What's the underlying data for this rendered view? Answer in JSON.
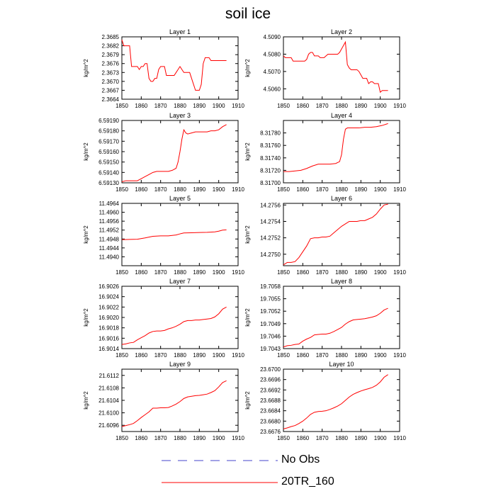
{
  "title": "soil ice",
  "colors": {
    "model_line": "#ff0000",
    "obs_line": "#4444cc",
    "axis": "#000000"
  },
  "legend": {
    "entries": [
      {
        "label": "No Obs",
        "style": "dashed",
        "color": "#4444cc"
      },
      {
        "label": "20TR_160",
        "style": "solid",
        "color": "#ff0000"
      }
    ]
  },
  "chart_data": [
    {
      "type": "line",
      "title": "Layer 1",
      "ylabel": "kg/m^2",
      "xlim": [
        1850,
        1910
      ],
      "x_ticks": [
        "1850",
        "1860",
        "1870",
        "1880",
        "1890",
        "1900",
        "1910"
      ],
      "ylim": [
        2.3664,
        2.3685
      ],
      "y_ticks": [
        "2.3664",
        "2.3667",
        "2.3670",
        "2.3673",
        "2.3676",
        "2.3679",
        "2.3682",
        "2.3685"
      ],
      "series": [
        {
          "name": "20TR_160",
          "x": [
            1850,
            1851,
            1852,
            1853,
            1854,
            1855,
            1856,
            1857,
            1858,
            1859,
            1860,
            1861,
            1862,
            1863,
            1864,
            1865,
            1866,
            1867,
            1868,
            1869,
            1870,
            1871,
            1872,
            1873,
            1874,
            1875,
            1876,
            1877,
            1878,
            1879,
            1880,
            1881,
            1882,
            1883,
            1884,
            1885,
            1886,
            1887,
            1888,
            1889,
            1890,
            1891,
            1892,
            1893,
            1894,
            1895,
            1896,
            1897,
            1898,
            1899,
            1900,
            1901,
            1902,
            1903,
            1904
          ],
          "y": [
            2.3684,
            2.3682,
            2.3682,
            2.3682,
            2.3682,
            2.3675,
            2.3675,
            2.3675,
            2.3675,
            2.3674,
            2.3675,
            2.3675,
            2.3676,
            2.3676,
            2.3671,
            2.367,
            2.367,
            2.3671,
            2.3671,
            2.3674,
            2.3675,
            2.3675,
            2.3675,
            2.3672,
            2.3672,
            2.3672,
            2.3672,
            2.3672,
            2.3673,
            2.3674,
            2.3675,
            2.3674,
            2.3673,
            2.3673,
            2.3673,
            2.3673,
            2.3671,
            2.3669,
            2.3667,
            2.3667,
            2.3667,
            2.3669,
            2.3676,
            2.3678,
            2.3678,
            2.3678,
            2.3677,
            2.3677,
            2.3677,
            2.3677,
            2.3677,
            2.3677,
            2.3677,
            2.3677,
            2.3677
          ]
        }
      ]
    },
    {
      "type": "line",
      "title": "Layer 2",
      "ylabel": "kg/m^2",
      "xlim": [
        1850,
        1910
      ],
      "x_ticks": [
        "1850",
        "1860",
        "1870",
        "1880",
        "1890",
        "1900",
        "1910"
      ],
      "ylim": [
        4.5054,
        4.509
      ],
      "y_ticks": [
        "4.5060",
        "4.5070",
        "4.5080",
        "4.5090"
      ],
      "series": [
        {
          "name": "20TR_160",
          "x": [
            1850,
            1851,
            1852,
            1853,
            1854,
            1855,
            1856,
            1857,
            1858,
            1859,
            1860,
            1861,
            1862,
            1863,
            1864,
            1865,
            1866,
            1867,
            1868,
            1869,
            1870,
            1871,
            1872,
            1873,
            1874,
            1875,
            1876,
            1877,
            1878,
            1879,
            1880,
            1881,
            1882,
            1883,
            1884,
            1885,
            1886,
            1887,
            1888,
            1889,
            1890,
            1891,
            1892,
            1893,
            1894,
            1895,
            1896,
            1897,
            1898,
            1899,
            1900,
            1901,
            1902,
            1903,
            1904
          ],
          "y": [
            4.5079,
            4.5078,
            4.5078,
            4.5078,
            4.5078,
            4.5076,
            4.5076,
            4.5076,
            4.5076,
            4.5076,
            4.5076,
            4.5076,
            4.5077,
            4.508,
            4.5081,
            4.5081,
            4.5079,
            4.5079,
            4.5079,
            4.5078,
            4.5078,
            4.5078,
            4.5079,
            4.508,
            4.508,
            4.508,
            4.508,
            4.508,
            4.508,
            4.5081,
            4.5083,
            4.5085,
            4.5087,
            4.5074,
            4.5072,
            4.5071,
            4.5071,
            4.5071,
            4.5071,
            4.507,
            4.5068,
            4.5066,
            4.5066,
            4.5066,
            4.5063,
            4.5064,
            4.5064,
            4.5063,
            4.5063,
            4.5063,
            4.5058,
            4.5059,
            4.5059,
            4.5059,
            4.5059
          ]
        }
      ]
    },
    {
      "type": "line",
      "title": "Layer 3",
      "ylabel": "kg/m^2",
      "xlim": [
        1850,
        1910
      ],
      "x_ticks": [
        "1850",
        "1860",
        "1870",
        "1880",
        "1890",
        "1900",
        "1910"
      ],
      "ylim": [
        6.5913,
        6.5919
      ],
      "y_ticks": [
        "6.59130",
        "6.59140",
        "6.59150",
        "6.59160",
        "6.59170",
        "6.59180",
        "6.59190"
      ],
      "series": [
        {
          "name": "20TR_160",
          "x": [
            1850,
            1852,
            1854,
            1856,
            1858,
            1860,
            1862,
            1864,
            1866,
            1868,
            1870,
            1872,
            1874,
            1876,
            1878,
            1879,
            1880,
            1881,
            1882,
            1883,
            1884,
            1886,
            1888,
            1890,
            1892,
            1894,
            1896,
            1898,
            1900,
            1902,
            1904
          ],
          "y": [
            6.59131,
            6.59132,
            6.59132,
            6.59132,
            6.59132,
            6.59134,
            6.59136,
            6.59138,
            6.5914,
            6.59141,
            6.59141,
            6.59141,
            6.59141,
            6.59142,
            6.59144,
            6.5915,
            6.5916,
            6.59172,
            6.59181,
            6.59178,
            6.59177,
            6.59178,
            6.59179,
            6.59179,
            6.59179,
            6.59179,
            6.5918,
            6.5918,
            6.59181,
            6.59184,
            6.59186
          ]
        }
      ]
    },
    {
      "type": "line",
      "title": "Layer 4",
      "ylabel": "kg/m^2",
      "xlim": [
        1850,
        1910
      ],
      "x_ticks": [
        "1850",
        "1860",
        "1870",
        "1880",
        "1890",
        "1900",
        "1910"
      ],
      "ylim": [
        8.317,
        8.318
      ],
      "y_ticks": [
        "8.31700",
        "8.31720",
        "8.31740",
        "8.31760",
        "8.31780"
      ],
      "series": [
        {
          "name": "20TR_160",
          "x": [
            1850,
            1853,
            1856,
            1859,
            1862,
            1865,
            1868,
            1871,
            1874,
            1877,
            1879,
            1880,
            1881,
            1882,
            1883,
            1886,
            1889,
            1892,
            1895,
            1898,
            1901,
            1904
          ],
          "y": [
            8.31718,
            8.31718,
            8.31719,
            8.3172,
            8.31723,
            8.31727,
            8.3173,
            8.3173,
            8.3173,
            8.31731,
            8.31734,
            8.31745,
            8.3177,
            8.31786,
            8.31788,
            8.31788,
            8.31788,
            8.31789,
            8.31789,
            8.3179,
            8.31792,
            8.31795
          ]
        }
      ]
    },
    {
      "type": "line",
      "title": "Layer 5",
      "ylabel": "kg/m^2",
      "xlim": [
        1850,
        1910
      ],
      "x_ticks": [
        "1850",
        "1860",
        "1870",
        "1880",
        "1890",
        "1900",
        "1910"
      ],
      "ylim": [
        11.4936,
        11.4964
      ],
      "y_ticks": [
        "11.4940",
        "11.4944",
        "11.4948",
        "11.4952",
        "11.4956",
        "11.4960",
        "11.4964"
      ],
      "series": [
        {
          "name": "20TR_160",
          "x": [
            1850,
            1854,
            1858,
            1862,
            1866,
            1870,
            1874,
            1878,
            1880,
            1882,
            1886,
            1890,
            1894,
            1898,
            1900,
            1902,
            1904
          ],
          "y": [
            11.49477,
            11.49478,
            11.49479,
            11.49485,
            11.49492,
            11.49494,
            11.49494,
            11.49498,
            11.49503,
            11.49507,
            11.49508,
            11.49509,
            11.4951,
            11.49512,
            11.49515,
            11.4952,
            11.49521
          ]
        }
      ]
    },
    {
      "type": "line",
      "title": "Layer 6",
      "ylabel": "kg/m^2",
      "xlim": [
        1850,
        1910
      ],
      "x_ticks": [
        "1850",
        "1860",
        "1870",
        "1880",
        "1890",
        "1900",
        "1910"
      ],
      "ylim": [
        14.27486,
        14.27562
      ],
      "y_ticks": [
        "14.2750",
        "14.2752",
        "14.2754",
        "14.2756"
      ],
      "series": [
        {
          "name": "20TR_160",
          "x": [
            1850,
            1852,
            1854,
            1856,
            1858,
            1860,
            1862,
            1864,
            1866,
            1868,
            1870,
            1872,
            1874,
            1876,
            1878,
            1880,
            1882,
            1884,
            1886,
            1888,
            1890,
            1892,
            1894,
            1896,
            1898,
            1900,
            1902,
            1904
          ],
          "y": [
            14.27487,
            14.2749,
            14.2749,
            14.27491,
            14.27496,
            14.27503,
            14.2751,
            14.27519,
            14.2752,
            14.2752,
            14.27521,
            14.27521,
            14.27522,
            14.27526,
            14.2753,
            14.27534,
            14.27537,
            14.2754,
            14.2754,
            14.2754,
            14.27541,
            14.27541,
            14.27543,
            14.27545,
            14.27549,
            14.27555,
            14.2756,
            14.27561
          ]
        }
      ]
    },
    {
      "type": "line",
      "title": "Layer 7",
      "ylabel": "kg/m^2",
      "xlim": [
        1850,
        1910
      ],
      "x_ticks": [
        "1850",
        "1860",
        "1870",
        "1880",
        "1890",
        "1900",
        "1910"
      ],
      "ylim": [
        16.9014,
        16.9026
      ],
      "y_ticks": [
        "16.9014",
        "16.9016",
        "16.9018",
        "16.9020",
        "16.9022",
        "16.9024",
        "16.9026"
      ],
      "series": [
        {
          "name": "20TR_160",
          "x": [
            1850,
            1852,
            1854,
            1856,
            1858,
            1860,
            1862,
            1864,
            1866,
            1868,
            1870,
            1872,
            1874,
            1876,
            1878,
            1880,
            1882,
            1884,
            1886,
            1888,
            1890,
            1892,
            1894,
            1896,
            1898,
            1900,
            1902,
            1904
          ],
          "y": [
            16.90148,
            16.90149,
            16.90151,
            16.90152,
            16.90157,
            16.90161,
            16.90165,
            16.9017,
            16.90173,
            16.90174,
            16.90174,
            16.90175,
            16.90178,
            16.9018,
            16.90183,
            16.90187,
            16.90192,
            16.90194,
            16.90194,
            16.90195,
            16.90195,
            16.90196,
            16.90197,
            16.90198,
            16.90201,
            16.90207,
            16.90216,
            16.9022
          ]
        }
      ]
    },
    {
      "type": "line",
      "title": "Layer 8",
      "ylabel": "kg/m^2",
      "xlim": [
        1850,
        1910
      ],
      "x_ticks": [
        "1850",
        "1860",
        "1870",
        "1880",
        "1890",
        "1900",
        "1910"
      ],
      "ylim": [
        19.7043,
        19.7058
      ],
      "y_ticks": [
        "19.7043",
        "19.7046",
        "19.7049",
        "19.7052",
        "19.7055",
        "19.7058"
      ],
      "series": [
        {
          "name": "20TR_160",
          "x": [
            1850,
            1852,
            1854,
            1856,
            1858,
            1860,
            1862,
            1864,
            1866,
            1868,
            1870,
            1872,
            1874,
            1876,
            1878,
            1880,
            1882,
            1884,
            1886,
            1888,
            1890,
            1892,
            1894,
            1896,
            1898,
            1900,
            1902,
            1904
          ],
          "y": [
            19.70434,
            19.70437,
            19.70438,
            19.7044,
            19.70441,
            19.70448,
            19.70453,
            19.70457,
            19.70463,
            19.70464,
            19.70465,
            19.70465,
            19.70467,
            19.70471,
            19.70476,
            19.70481,
            19.70489,
            19.70495,
            19.70499,
            19.705,
            19.70501,
            19.70502,
            19.70504,
            19.70506,
            19.70509,
            19.70515,
            19.70523,
            19.70527
          ]
        }
      ]
    },
    {
      "type": "line",
      "title": "Layer 9",
      "ylabel": "kg/m^2",
      "xlim": [
        1850,
        1910
      ],
      "x_ticks": [
        "1850",
        "1860",
        "1870",
        "1880",
        "1890",
        "1900",
        "1910"
      ],
      "ylim": [
        21.6094,
        21.6114
      ],
      "y_ticks": [
        "21.6096",
        "21.6100",
        "21.6104",
        "21.6108",
        "21.6112"
      ],
      "series": [
        {
          "name": "20TR_160",
          "x": [
            1850,
            1852,
            1854,
            1856,
            1858,
            1860,
            1862,
            1864,
            1866,
            1868,
            1870,
            1872,
            1874,
            1876,
            1878,
            1880,
            1882,
            1884,
            1886,
            1888,
            1890,
            1892,
            1894,
            1896,
            1898,
            1900,
            1902,
            1904
          ],
          "y": [
            21.60956,
            21.60959,
            21.60962,
            21.60966,
            21.60975,
            21.60985,
            21.60994,
            21.61003,
            21.61015,
            21.61015,
            21.61016,
            21.61016,
            21.61017,
            21.61022,
            21.61028,
            21.61036,
            21.61046,
            21.61051,
            21.61053,
            21.61055,
            21.61056,
            21.61058,
            21.6106,
            21.61065,
            21.61071,
            21.61083,
            21.61097,
            21.61103
          ]
        }
      ]
    },
    {
      "type": "line",
      "title": "Layer 10",
      "ylabel": "kg/m^2",
      "xlim": [
        1850,
        1910
      ],
      "x_ticks": [
        "1850",
        "1860",
        "1870",
        "1880",
        "1890",
        "1900",
        "1910"
      ],
      "ylim": [
        23.6676,
        23.67
      ],
      "y_ticks": [
        "23.6676",
        "23.6680",
        "23.6684",
        "23.6688",
        "23.6692",
        "23.6696",
        "23.6700"
      ],
      "series": [
        {
          "name": "20TR_160",
          "x": [
            1850,
            1852,
            1854,
            1856,
            1858,
            1860,
            1862,
            1864,
            1866,
            1868,
            1870,
            1872,
            1874,
            1876,
            1878,
            1880,
            1882,
            1884,
            1886,
            1888,
            1890,
            1892,
            1894,
            1896,
            1898,
            1900,
            1902,
            1904
          ],
          "y": [
            23.6677,
            23.66774,
            23.66779,
            23.66783,
            23.66791,
            23.668,
            23.66812,
            23.66826,
            23.66834,
            23.66837,
            23.66838,
            23.6684,
            23.66845,
            23.66851,
            23.66858,
            23.66867,
            23.6688,
            23.66893,
            23.66903,
            23.6691,
            23.66916,
            23.66921,
            23.66925,
            23.6693,
            23.66938,
            23.66951,
            23.66969,
            23.66979
          ]
        }
      ]
    }
  ]
}
